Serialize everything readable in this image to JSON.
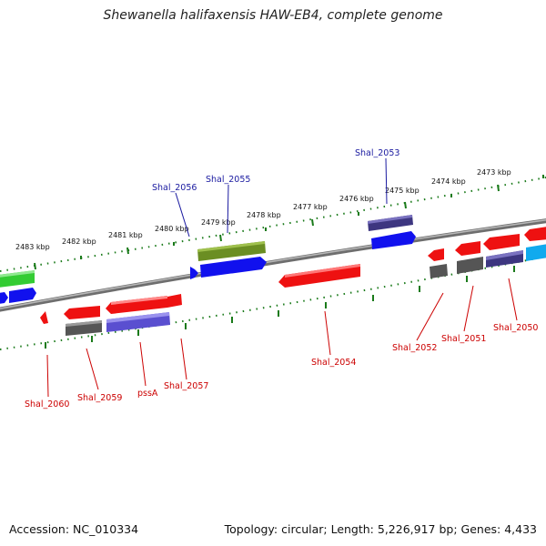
{
  "title": "Shewanella halifaxensis HAW-EB4, complete genome",
  "footer": {
    "accession": "Accession: NC_010334",
    "summary": "Topology: circular; Length: 5,226,917 bp; Genes: 4,433"
  },
  "scale_labels": [
    "2473 kbp",
    "2474 kbp",
    "2475 kbp",
    "2476 kbp",
    "2477 kbp",
    "2478 kbp",
    "2479 kbp",
    "2480 kbp",
    "2481 kbp",
    "2482 kbp",
    "2483 kbp"
  ],
  "gene_labels_top": [
    "Shal_2053",
    "Shal_2055",
    "Shal_2056"
  ],
  "gene_labels_bottom": [
    "Shal_2050",
    "Shal_2051",
    "Shal_2052",
    "Shal_2054",
    "Shal_2057",
    "pssA",
    "Shal_2059",
    "Shal_2060"
  ],
  "colors": {
    "red": "#ee1111",
    "blue": "#1111ee",
    "gray": "#666666",
    "slate": "#5a4fd0",
    "olive": "#6b8e23",
    "green": "#33cc33",
    "cyan": "#11aaee",
    "navy": "#3a2f7a",
    "tick": "#1a7a1a",
    "label_blue": "#1a1aa0",
    "label_red": "#cc0000"
  }
}
